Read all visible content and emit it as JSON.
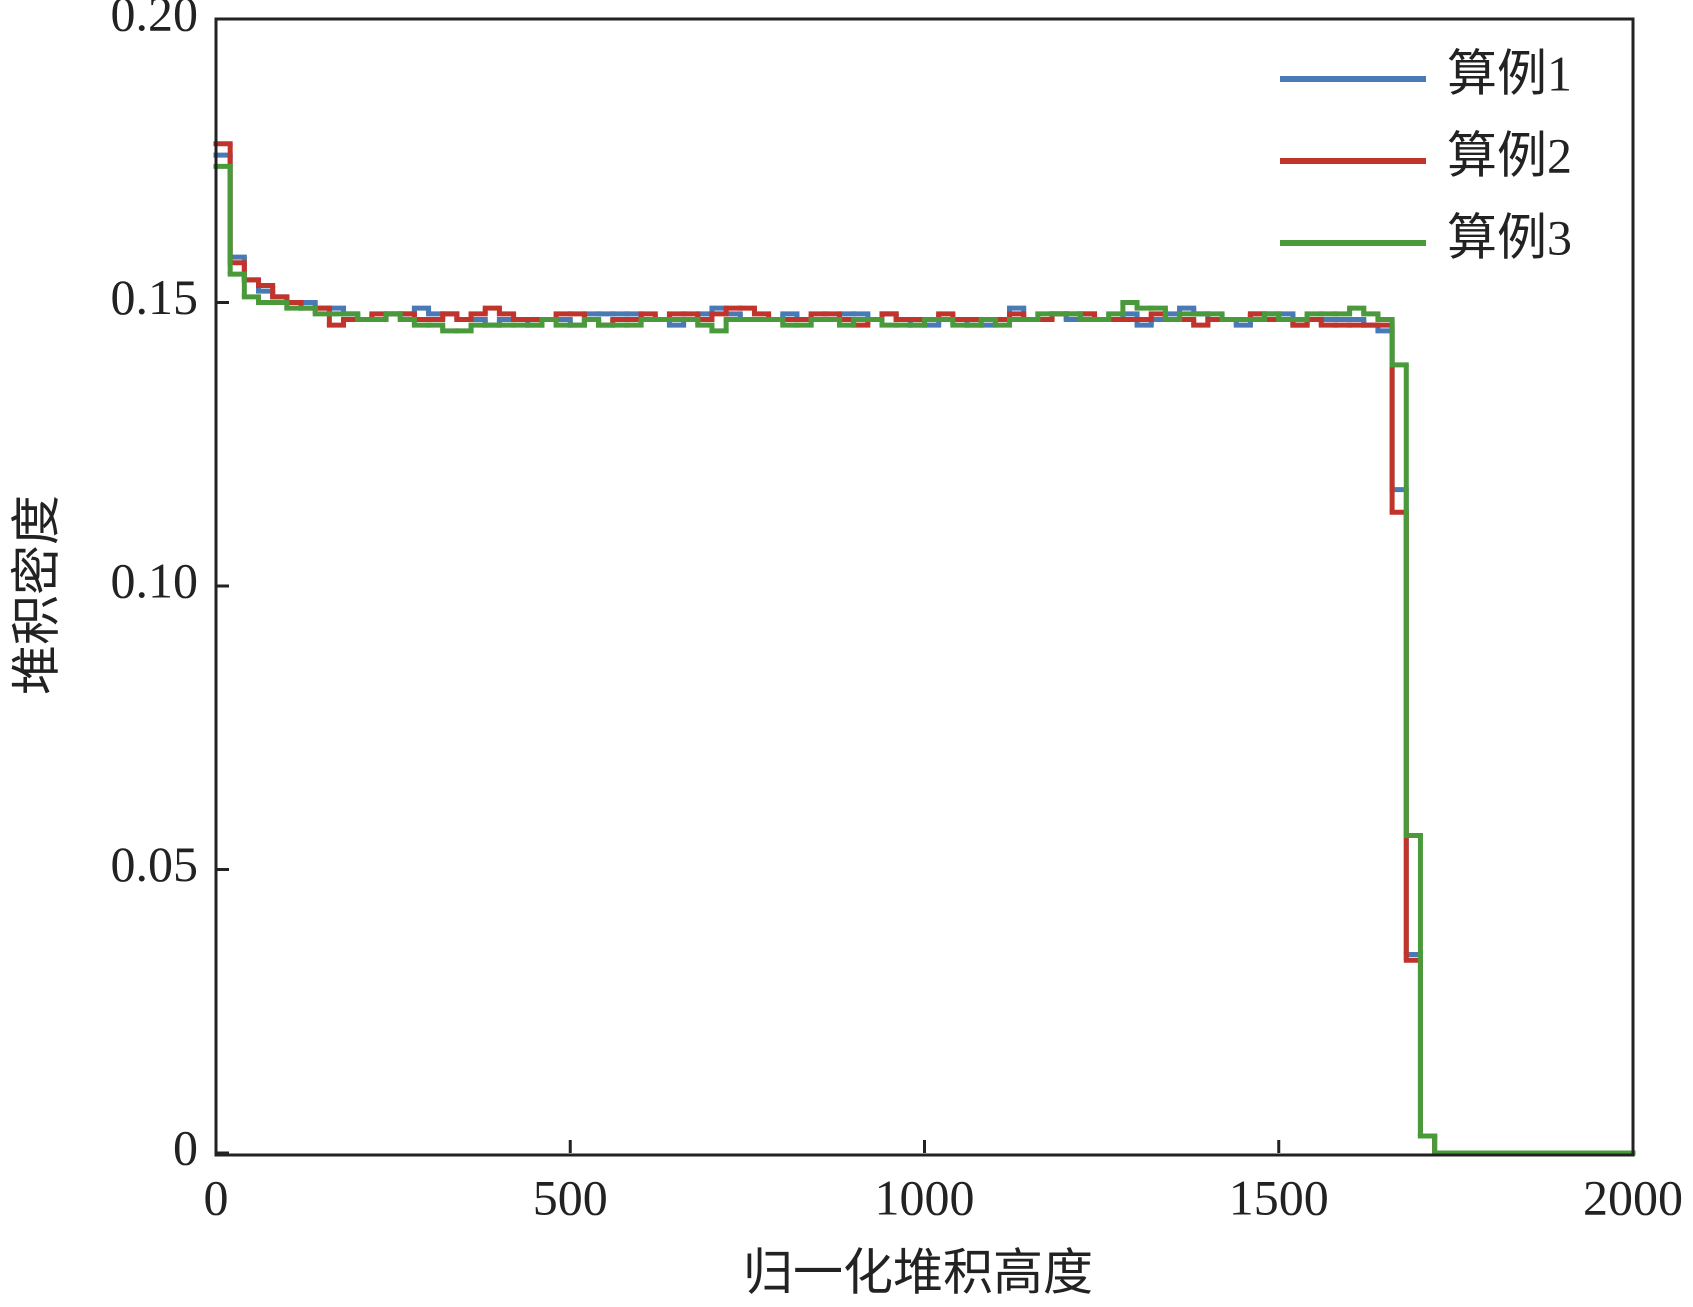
{
  "chart_data": {
    "type": "step",
    "x_label": "归一化堆积高度",
    "y_label": "堆积密度",
    "xlim": [
      0,
      2000
    ],
    "ylim": [
      0,
      0.2
    ],
    "xticks": [
      0,
      500,
      1000,
      1500,
      2000
    ],
    "yticks": [
      0,
      0.05,
      {
        "value": 0.1,
        "label": "0.10"
      },
      0.15,
      {
        "value": 0.2,
        "label": "0.20"
      }
    ],
    "legend": "upper right",
    "x": [
      0,
      20,
      40,
      60,
      80,
      100,
      120,
      140,
      160,
      180,
      200,
      220,
      240,
      260,
      280,
      300,
      320,
      340,
      360,
      380,
      400,
      420,
      440,
      460,
      480,
      500,
      520,
      540,
      560,
      580,
      600,
      620,
      640,
      660,
      680,
      700,
      720,
      740,
      760,
      780,
      800,
      820,
      840,
      860,
      880,
      900,
      920,
      940,
      960,
      980,
      1000,
      1020,
      1040,
      1060,
      1080,
      1100,
      1120,
      1140,
      1160,
      1180,
      1200,
      1220,
      1240,
      1260,
      1280,
      1300,
      1320,
      1340,
      1360,
      1380,
      1400,
      1420,
      1440,
      1460,
      1480,
      1500,
      1520,
      1540,
      1560,
      1580,
      1600,
      1620,
      1640,
      1660,
      1680,
      1700,
      1720,
      1740,
      1760,
      1780,
      1800,
      1820,
      1840,
      1860,
      1880,
      1900,
      1920,
      1940,
      1960,
      1980
    ],
    "series": [
      {
        "name": "算例1",
        "color": "#4a7ab5",
        "values": [
          0.176,
          0.158,
          0.154,
          0.152,
          0.151,
          0.15,
          0.15,
          0.149,
          0.149,
          0.148,
          0.147,
          0.147,
          0.148,
          0.148,
          0.149,
          0.148,
          0.148,
          0.147,
          0.147,
          0.146,
          0.147,
          0.147,
          0.146,
          0.147,
          0.147,
          0.146,
          0.148,
          0.148,
          0.148,
          0.148,
          0.147,
          0.147,
          0.146,
          0.147,
          0.148,
          0.149,
          0.148,
          0.147,
          0.147,
          0.147,
          0.148,
          0.147,
          0.147,
          0.147,
          0.148,
          0.148,
          0.147,
          0.148,
          0.147,
          0.146,
          0.146,
          0.147,
          0.147,
          0.146,
          0.146,
          0.147,
          0.149,
          0.147,
          0.147,
          0.148,
          0.147,
          0.148,
          0.147,
          0.147,
          0.148,
          0.146,
          0.147,
          0.148,
          0.149,
          0.148,
          0.147,
          0.147,
          0.146,
          0.148,
          0.148,
          0.148,
          0.146,
          0.147,
          0.147,
          0.147,
          0.147,
          0.146,
          0.145,
          0.117,
          0.035,
          0.003,
          0,
          0,
          0,
          0,
          0,
          0,
          0,
          0,
          0,
          0,
          0,
          0,
          0,
          0
        ]
      },
      {
        "name": "算例2",
        "color": "#c0342c",
        "values": [
          0.178,
          0.157,
          0.154,
          0.153,
          0.151,
          0.15,
          0.149,
          0.149,
          0.146,
          0.147,
          0.147,
          0.148,
          0.148,
          0.148,
          0.147,
          0.147,
          0.148,
          0.147,
          0.148,
          0.149,
          0.148,
          0.147,
          0.147,
          0.147,
          0.148,
          0.148,
          0.147,
          0.146,
          0.147,
          0.147,
          0.148,
          0.147,
          0.148,
          0.148,
          0.147,
          0.148,
          0.149,
          0.149,
          0.148,
          0.147,
          0.147,
          0.147,
          0.148,
          0.148,
          0.147,
          0.146,
          0.147,
          0.148,
          0.147,
          0.147,
          0.147,
          0.148,
          0.147,
          0.147,
          0.147,
          0.147,
          0.148,
          0.147,
          0.147,
          0.148,
          0.148,
          0.148,
          0.147,
          0.147,
          0.147,
          0.147,
          0.148,
          0.147,
          0.147,
          0.146,
          0.147,
          0.147,
          0.147,
          0.148,
          0.147,
          0.147,
          0.146,
          0.147,
          0.146,
          0.146,
          0.146,
          0.146,
          0.146,
          0.113,
          0.034,
          0.003,
          0,
          0,
          0,
          0,
          0,
          0,
          0,
          0,
          0,
          0,
          0,
          0,
          0,
          0
        ]
      },
      {
        "name": "算例3",
        "color": "#4a9a3c",
        "values": [
          0.174,
          0.155,
          0.151,
          0.15,
          0.15,
          0.149,
          0.149,
          0.148,
          0.148,
          0.148,
          0.147,
          0.147,
          0.148,
          0.147,
          0.146,
          0.146,
          0.145,
          0.145,
          0.146,
          0.146,
          0.146,
          0.146,
          0.146,
          0.147,
          0.146,
          0.146,
          0.147,
          0.146,
          0.146,
          0.146,
          0.147,
          0.147,
          0.147,
          0.147,
          0.146,
          0.145,
          0.147,
          0.147,
          0.147,
          0.147,
          0.146,
          0.146,
          0.147,
          0.147,
          0.146,
          0.147,
          0.147,
          0.146,
          0.146,
          0.146,
          0.147,
          0.147,
          0.146,
          0.146,
          0.147,
          0.146,
          0.147,
          0.147,
          0.148,
          0.148,
          0.148,
          0.147,
          0.147,
          0.148,
          0.15,
          0.149,
          0.149,
          0.147,
          0.148,
          0.148,
          0.148,
          0.147,
          0.147,
          0.147,
          0.148,
          0.147,
          0.147,
          0.148,
          0.148,
          0.148,
          0.149,
          0.148,
          0.147,
          0.139,
          0.056,
          0.003,
          0,
          0,
          0,
          0,
          0,
          0,
          0,
          0,
          0,
          0,
          0,
          0,
          0,
          0
        ]
      }
    ]
  }
}
